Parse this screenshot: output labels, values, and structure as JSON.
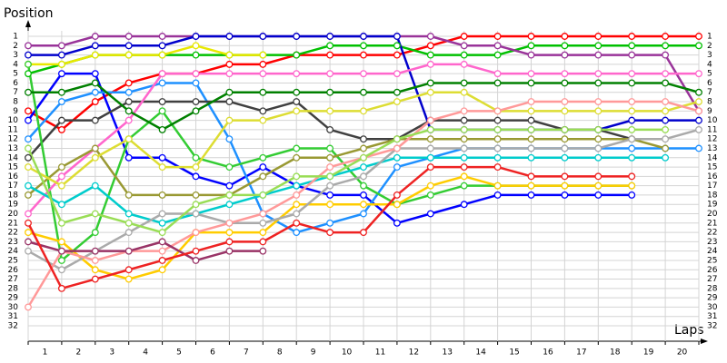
{
  "chart_data": {
    "type": "line",
    "y_label": "Position",
    "x_label": "Laps",
    "x": [
      0,
      1,
      2,
      3,
      4,
      5,
      6,
      7,
      8,
      9,
      10,
      11,
      12,
      13,
      14,
      15,
      16,
      17,
      18,
      19,
      20
    ],
    "xlim": [
      0,
      20
    ],
    "xticks": [
      {
        "value": 0.5,
        "label": "1"
      },
      {
        "value": 1.5,
        "label": "2"
      },
      {
        "value": 2.5,
        "label": "3"
      },
      {
        "value": 3.5,
        "label": "4"
      },
      {
        "value": 4.5,
        "label": "5"
      },
      {
        "value": 5.5,
        "label": "6"
      },
      {
        "value": 6.5,
        "label": "7"
      },
      {
        "value": 7.5,
        "label": "8"
      },
      {
        "value": 8.5,
        "label": "9"
      },
      {
        "value": 9.5,
        "label": "10"
      },
      {
        "value": 10.5,
        "label": "11"
      },
      {
        "value": 11.5,
        "label": "12"
      },
      {
        "value": 12.5,
        "label": "13"
      },
      {
        "value": 13.5,
        "label": "14"
      },
      {
        "value": 14.5,
        "label": "15"
      },
      {
        "value": 15.5,
        "label": "16"
      },
      {
        "value": 16.5,
        "label": "17"
      },
      {
        "value": 17.5,
        "label": "18"
      },
      {
        "value": 18.5,
        "label": "19"
      },
      {
        "value": 19.5,
        "label": "20"
      }
    ],
    "ylim": [
      1,
      32
    ],
    "reverse_y": true,
    "yticks": [
      1,
      2,
      3,
      4,
      5,
      6,
      7,
      8,
      9,
      10,
      11,
      12,
      13,
      14,
      15,
      16,
      17,
      18,
      19,
      20,
      21,
      22,
      23,
      24,
      25,
      26,
      27,
      28,
      29,
      30,
      31,
      32
    ],
    "grid": true,
    "series": [
      {
        "color": "#ff0000",
        "values": [
          9,
          11,
          8,
          6,
          5,
          5,
          4,
          4,
          3,
          3,
          3,
          3,
          2,
          1,
          1,
          1,
          1,
          1,
          1,
          1,
          1
        ]
      },
      {
        "color": "#00c000",
        "values": [
          5,
          4,
          3,
          3,
          3,
          3,
          3,
          3,
          3,
          2,
          2,
          2,
          3,
          3,
          3,
          2,
          2,
          2,
          2,
          2,
          2
        ]
      },
      {
        "color": "#993399",
        "values": [
          2,
          2,
          1,
          1,
          1,
          1,
          1,
          1,
          1,
          1,
          1,
          1,
          1,
          2,
          2,
          3,
          3,
          3,
          3,
          3,
          9
        ]
      },
      {
        "color": "#0000cc",
        "values": [
          3,
          3,
          2,
          2,
          2,
          1,
          1,
          1,
          1,
          1,
          1,
          1,
          11,
          11,
          11,
          11,
          11,
          11,
          10,
          10,
          10
        ]
      },
      {
        "color": "#0000ff",
        "values": [
          10,
          5,
          5,
          14,
          14,
          16,
          17,
          15,
          17,
          18,
          18,
          21,
          20,
          19,
          18,
          18,
          18,
          18,
          18,
          null,
          null
        ]
      },
      {
        "color": "#e8e800",
        "values": [
          4,
          4,
          3,
          3,
          3,
          2,
          3,
          3,
          null,
          null,
          null,
          null,
          null,
          null,
          null,
          null,
          null,
          null,
          null,
          null,
          null
        ]
      },
      {
        "color": "#1e90ff",
        "values": [
          12,
          8,
          7,
          7,
          6,
          6,
          12,
          20,
          22,
          21,
          20,
          15,
          14,
          13,
          13,
          13,
          13,
          13,
          13,
          13,
          13
        ]
      },
      {
        "color": "#404040",
        "values": [
          14,
          10,
          10,
          8,
          8,
          8,
          8,
          9,
          8,
          11,
          12,
          12,
          10,
          10,
          10,
          10,
          11,
          11,
          12,
          null,
          null
        ]
      },
      {
        "color": "#33cc33",
        "values": [
          4,
          25,
          22,
          12,
          9,
          14,
          15,
          14,
          13,
          13,
          17,
          19,
          18,
          17,
          17,
          17,
          17,
          17,
          17,
          null,
          null
        ]
      },
      {
        "color": "#ff66cc",
        "values": [
          20,
          16,
          13,
          10,
          5,
          5,
          5,
          5,
          5,
          5,
          5,
          5,
          4,
          4,
          5,
          5,
          5,
          5,
          5,
          5,
          5
        ]
      },
      {
        "color": "#999933",
        "values": [
          18,
          15,
          13,
          18,
          18,
          18,
          18,
          16,
          14,
          14,
          13,
          12,
          12,
          12,
          12,
          12,
          12,
          12,
          12,
          13,
          null
        ]
      },
      {
        "color": "#ffcc00",
        "values": [
          22,
          23,
          26,
          27,
          26,
          22,
          22,
          22,
          19,
          19,
          19,
          19,
          17,
          16,
          17,
          17,
          17,
          17,
          17,
          null,
          null
        ]
      },
      {
        "color": "#00cccc",
        "values": [
          17,
          19,
          17,
          20,
          21,
          20,
          19,
          18,
          17,
          16,
          15,
          14,
          14,
          14,
          14,
          14,
          14,
          14,
          14,
          14,
          null
        ]
      },
      {
        "color": "#aaaaaa",
        "values": [
          24,
          26,
          24,
          22,
          20,
          20,
          21,
          21,
          20,
          17,
          16,
          13,
          13,
          13,
          13,
          13,
          13,
          13,
          12,
          12,
          11
        ]
      },
      {
        "color": "#008000",
        "values": [
          7,
          7,
          6,
          9,
          11,
          9,
          7,
          7,
          7,
          7,
          7,
          7,
          6,
          6,
          6,
          6,
          6,
          6,
          6,
          6,
          7
        ]
      },
      {
        "color": "#dddd33",
        "values": [
          15,
          17,
          14,
          12,
          15,
          15,
          10,
          10,
          9,
          9,
          9,
          8,
          7,
          7,
          9,
          9,
          9,
          9,
          9,
          9,
          8
        ]
      },
      {
        "color": "#ff9999",
        "values": [
          30,
          24,
          25,
          24,
          24,
          22,
          21,
          20,
          18,
          15,
          14,
          13,
          10,
          9,
          9,
          8,
          8,
          8,
          8,
          8,
          9
        ]
      },
      {
        "color": "#993366",
        "values": [
          23,
          24,
          24,
          24,
          23,
          25,
          24,
          24,
          null,
          null,
          null,
          null,
          null,
          null,
          null,
          null,
          null,
          null,
          null,
          null,
          null
        ]
      },
      {
        "color": "#99dd55",
        "values": [
          13,
          21,
          20,
          21,
          22,
          19,
          18,
          18,
          16,
          16,
          14,
          12,
          11,
          11,
          11,
          11,
          11,
          11,
          11,
          11,
          null
        ]
      },
      {
        "color": "#ee2222",
        "values": [
          21,
          28,
          27,
          26,
          25,
          24,
          23,
          23,
          21,
          22,
          22,
          18,
          15,
          15,
          15,
          16,
          16,
          16,
          16,
          null,
          null
        ]
      }
    ]
  }
}
